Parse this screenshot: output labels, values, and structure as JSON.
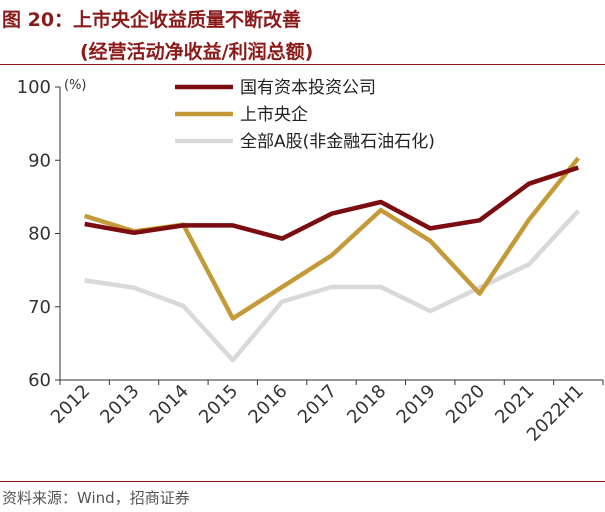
{
  "title": {
    "line1": "图 20：上市央企收益质量不断改善",
    "line2": "(经营活动净收益/利润总额)"
  },
  "source": "资料来源：Wind，招商证券",
  "colors": {
    "title": "#8B1A1A",
    "series": [
      "#7B0C10",
      "#C49A38",
      "#D9D9D9"
    ]
  },
  "chart_data": {
    "type": "line",
    "unit": "(%)",
    "categories": [
      "2012",
      "2013",
      "2014",
      "2015",
      "2016",
      "2017",
      "2018",
      "2019",
      "2020",
      "2021",
      "2022H1"
    ],
    "ylim": [
      60,
      100
    ],
    "yticks": [
      "60",
      "70",
      "80",
      "90",
      "100"
    ],
    "grid": false,
    "legend": "top",
    "series": [
      {
        "name": "国有资本投资公司",
        "values": [
          81.3,
          80.1,
          81.1,
          81.1,
          79.3,
          82.7,
          84.3,
          80.7,
          81.8,
          86.8,
          89.0
        ]
      },
      {
        "name": "上市央企",
        "values": [
          82.4,
          80.3,
          81.2,
          68.4,
          72.7,
          77.0,
          83.2,
          79.0,
          71.8,
          81.9,
          90.3
        ]
      },
      {
        "name": "全部A股(非金融石油石化)",
        "values": [
          73.6,
          72.6,
          70.1,
          62.7,
          70.7,
          72.7,
          72.7,
          69.4,
          72.6,
          75.8,
          83.1
        ]
      }
    ]
  }
}
